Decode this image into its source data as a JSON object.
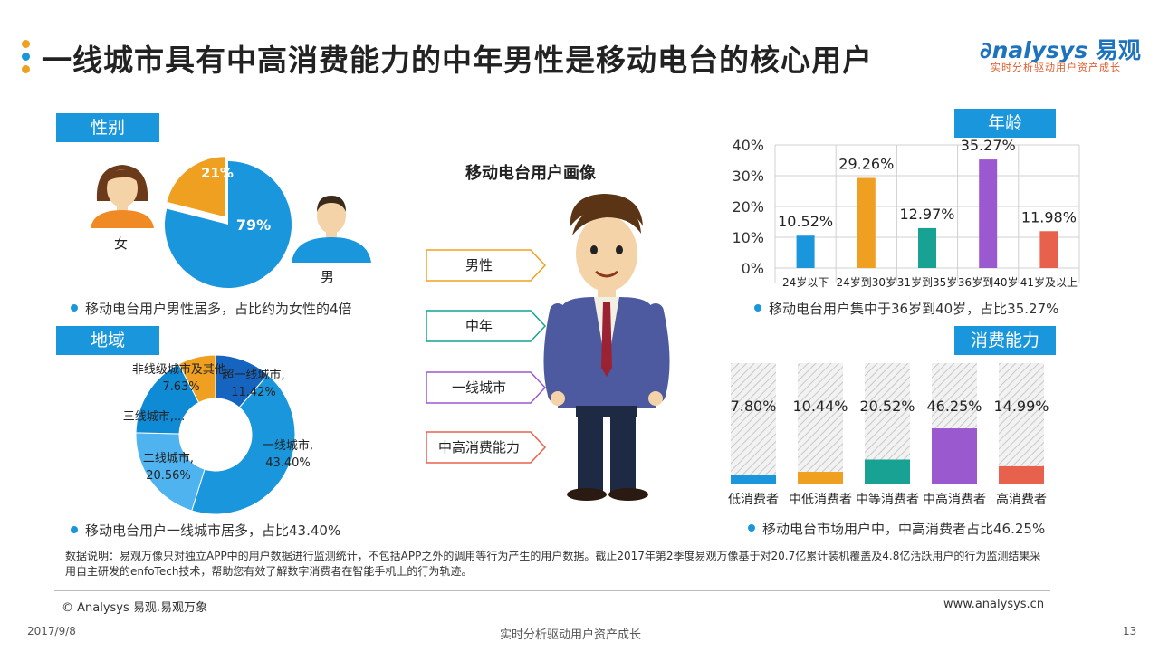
{
  "header": {
    "title": "一线城市具有中高消费能力的中年男性是移动电台的核心用户",
    "logo_brand": "nalysys",
    "logo_cn": "易观",
    "logo_tagline": "实时分析驱动用户资产成长",
    "dot_colors": [
      "#f0a020",
      "#1a96dc",
      "#f0a020"
    ]
  },
  "gender": {
    "label": "性别",
    "female_label": "女",
    "male_label": "男",
    "note": "移动电台用户男性居多，占比约为女性的4倍"
  },
  "region": {
    "label": "地域",
    "note": "移动电台用户一线城市居多，占比43.40%"
  },
  "center": {
    "title": "移动电台用户画像",
    "tags": [
      "男性",
      "中年",
      "一线城市",
      "中高消费能力"
    ],
    "tag_colors": [
      "#f0a020",
      "#17a293",
      "#9b59d0",
      "#e8614c"
    ]
  },
  "age": {
    "label": "年龄",
    "note": "移动电台用户集中于36岁到40岁，占比35.27%"
  },
  "consumption": {
    "label": "消费能力",
    "note": "移动电台市场用户中，中高消费者占比46.25%"
  },
  "footer": {
    "data_note": "数据说明：易观万像只对独立APP中的用户数据进行监测统计，不包括APP之外的调用等行为产生的用户数据。截止2017年第2季度易观万像基于对20.7亿累计装机覆盖及4.8亿活跃用户的行为监测结果采用自主研发的enfoTech技术，帮助您有效了解数字消费者在智能手机上的行为轨迹。",
    "copyright": "© Analysys 易观.易观万象",
    "website": "www.analysys.cn",
    "date": "2017/9/8",
    "slogan": "实时分析驱动用户资产成长",
    "page": "13"
  },
  "chart_data": [
    {
      "type": "pie",
      "categories": [
        "男",
        "女"
      ],
      "values": [
        79,
        21
      ],
      "labels": [
        "79%",
        "21%"
      ],
      "colors": [
        "#1a96dc",
        "#f0a020"
      ]
    },
    {
      "type": "pie",
      "donut": true,
      "categories": [
        "超一线城市",
        "一线城市",
        "二线城市",
        "三线城市",
        "非线级城市及其他"
      ],
      "values": [
        11.42,
        43.4,
        20.56,
        16.99,
        7.63
      ],
      "labels": [
        "超一线城市,\n11.42%",
        "一线城市,\n43.40%",
        "二线城市,\n20.56%",
        "三线城市,...",
        "非线级城市及其他,\n7.63%"
      ],
      "colors": [
        "#1565c0",
        "#1a96dc",
        "#4fb3f0",
        "#0f8bd6",
        "#f0a020"
      ]
    },
    {
      "type": "bar",
      "categories": [
        "24岁以下",
        "24岁到30岁",
        "31岁到35岁",
        "36岁到40岁",
        "41岁及以上"
      ],
      "values": [
        10.52,
        29.26,
        12.97,
        35.27,
        11.98
      ],
      "labels": [
        "10.52%",
        "29.26%",
        "12.97%",
        "35.27%",
        "11.98%"
      ],
      "colors": [
        "#1a96dc",
        "#f0a020",
        "#17a293",
        "#9b59d0",
        "#e8614c"
      ],
      "yticks": [
        "0%",
        "10%",
        "20%",
        "30%",
        "40%"
      ],
      "ylim": [
        0,
        40
      ],
      "grid": true
    },
    {
      "type": "bar",
      "categories": [
        "低消费者",
        "中低消费者",
        "中等消费者",
        "中高消费者",
        "高消费者"
      ],
      "values": [
        7.8,
        10.44,
        20.52,
        46.25,
        14.99
      ],
      "labels": [
        "7.80%",
        "10.44%",
        "20.52%",
        "46.25%",
        "14.99%"
      ],
      "colors": [
        "#1a96dc",
        "#f0a020",
        "#17a293",
        "#9b59d0",
        "#e8614c"
      ],
      "ylim": [
        0,
        100
      ]
    }
  ]
}
